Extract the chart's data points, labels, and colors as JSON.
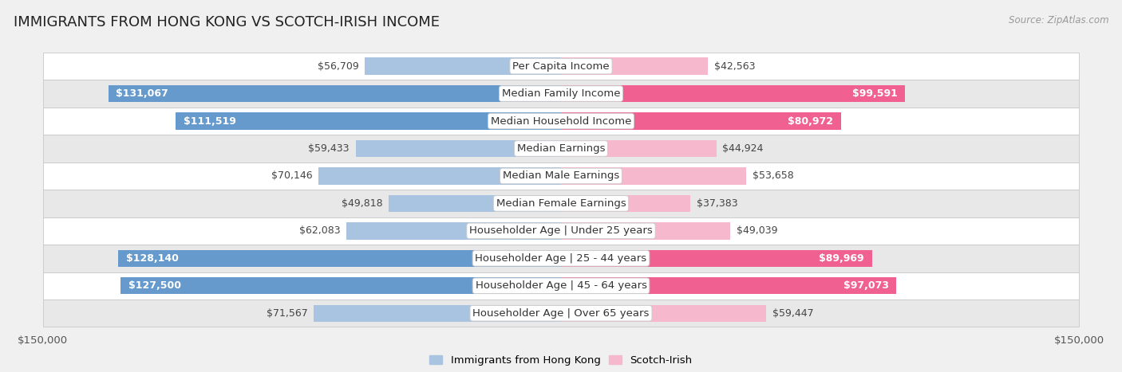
{
  "title": "IMMIGRANTS FROM HONG KONG VS SCOTCH-IRISH INCOME",
  "source": "Source: ZipAtlas.com",
  "categories": [
    "Per Capita Income",
    "Median Family Income",
    "Median Household Income",
    "Median Earnings",
    "Median Male Earnings",
    "Median Female Earnings",
    "Householder Age | Under 25 years",
    "Householder Age | 25 - 44 years",
    "Householder Age | 45 - 64 years",
    "Householder Age | Over 65 years"
  ],
  "hong_kong_values": [
    56709,
    131067,
    111519,
    59433,
    70146,
    49818,
    62083,
    128140,
    127500,
    71567
  ],
  "scotch_irish_values": [
    42563,
    99591,
    80972,
    44924,
    53658,
    37383,
    49039,
    89969,
    97073,
    59447
  ],
  "hk_color_light": "#a8c4e0",
  "hk_color_dark": "#6699cc",
  "si_color_light": "#f5b8cc",
  "si_color_dark": "#f06090",
  "hk_inside_threshold": 90000,
  "si_inside_threshold": 75000,
  "max_value": 150000,
  "bg_color": "#f0f0f0",
  "row_odd_color": "#ffffff",
  "row_even_color": "#e8e8e8",
  "bar_height": 0.62,
  "label_fontsize": 9.5,
  "value_fontsize": 9.0,
  "title_fontsize": 13,
  "legend_label_hk": "Immigrants from Hong Kong",
  "legend_label_si": "Scotch-Irish"
}
